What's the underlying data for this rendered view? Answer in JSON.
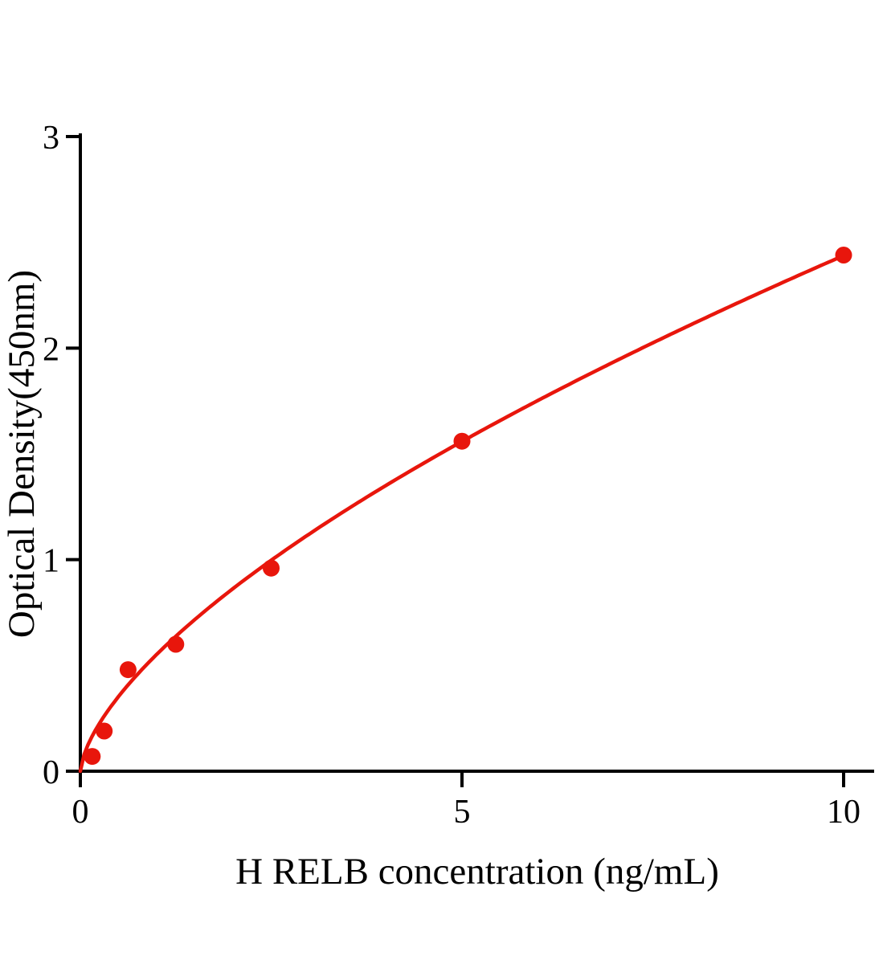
{
  "chart_data": {
    "type": "scatter",
    "title": "",
    "xlabel": "H RELB concentration (ng/mL)",
    "ylabel": "Optical Density(450nm)",
    "points": [
      {
        "x": 0.156,
        "y": 0.07
      },
      {
        "x": 0.3125,
        "y": 0.19
      },
      {
        "x": 0.625,
        "y": 0.48
      },
      {
        "x": 1.25,
        "y": 0.6
      },
      {
        "x": 2.5,
        "y": 0.96
      },
      {
        "x": 5,
        "y": 1.56
      },
      {
        "x": 10,
        "y": 2.44
      }
    ],
    "fit_curve": {
      "type": "power",
      "a": 0.552,
      "b": 0.645,
      "x_start": 0,
      "x_end": 10
    },
    "xlim": [
      0,
      10.4
    ],
    "ylim": [
      0,
      3
    ],
    "xticks": [
      0,
      5,
      10
    ],
    "yticks": [
      0,
      1,
      2,
      3
    ],
    "grid": false,
    "legend": null,
    "accent_color": "#e8160c",
    "axis_color": "#000000",
    "background_color": "#ffffff"
  }
}
